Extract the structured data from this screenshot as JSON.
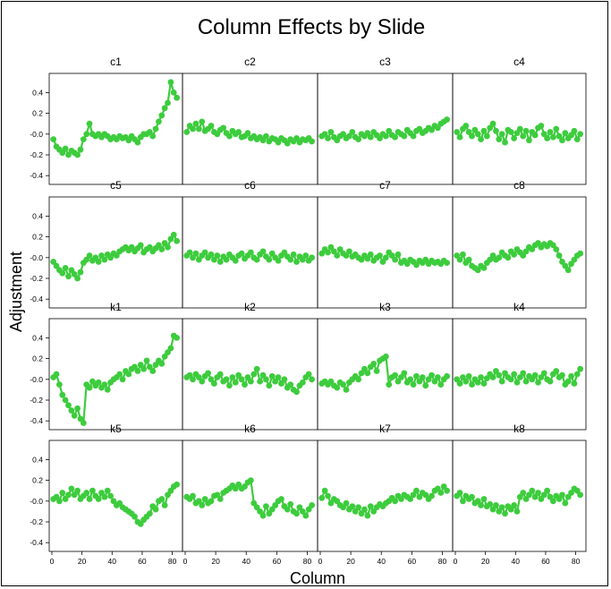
{
  "chart_data": {
    "type": "scatter",
    "title": "Column Effects by Slide",
    "xlabel": "Column",
    "ylabel": "Adjustment",
    "xlim": [
      0,
      85
    ],
    "ylim": [
      -0.45,
      0.55
    ],
    "xticks": [
      0,
      20,
      40,
      60,
      80
    ],
    "yticks": [
      -0.4,
      -0.2,
      0.0,
      0.2,
      0.4
    ],
    "ytick_labels": [
      "-0.4",
      "-0.2",
      "-0.0",
      "0.2",
      "0.4"
    ],
    "series_color": "#3dcc3d",
    "x": [
      1,
      3,
      5,
      7,
      9,
      11,
      13,
      15,
      17,
      19,
      21,
      23,
      25,
      27,
      29,
      31,
      33,
      35,
      37,
      39,
      41,
      43,
      45,
      47,
      49,
      51,
      53,
      55,
      57,
      59,
      61,
      63,
      65,
      67,
      69,
      71,
      73,
      75,
      77,
      79,
      81,
      83
    ],
    "panels": [
      {
        "name": "c1",
        "values": [
          -0.05,
          -0.12,
          -0.15,
          -0.18,
          -0.14,
          -0.2,
          -0.16,
          -0.18,
          -0.2,
          -0.15,
          -0.05,
          0.0,
          0.1,
          0.0,
          -0.02,
          0.0,
          -0.03,
          0.0,
          -0.02,
          -0.05,
          -0.03,
          -0.05,
          -0.02,
          -0.04,
          -0.03,
          -0.06,
          -0.02,
          -0.05,
          -0.08,
          -0.03,
          0.0,
          0.0,
          0.02,
          -0.02,
          0.05,
          0.12,
          0.18,
          0.25,
          0.3,
          0.5,
          0.4,
          0.35
        ]
      },
      {
        "name": "c2",
        "values": [
          0.02,
          0.08,
          0.05,
          0.1,
          0.05,
          0.12,
          0.03,
          0.05,
          0.08,
          0.02,
          0.0,
          0.04,
          0.06,
          0.01,
          -0.02,
          0.03,
          0.0,
          0.02,
          -0.03,
          -0.02,
          0.01,
          -0.04,
          -0.02,
          -0.05,
          -0.03,
          -0.06,
          -0.02,
          -0.07,
          -0.04,
          -0.05,
          -0.08,
          -0.04,
          -0.06,
          -0.09,
          -0.05,
          -0.07,
          -0.04,
          -0.08,
          -0.05,
          -0.06,
          -0.04,
          -0.07
        ]
      },
      {
        "name": "c3",
        "values": [
          -0.02,
          0.0,
          -0.04,
          0.02,
          -0.03,
          -0.06,
          -0.02,
          0.0,
          -0.04,
          -0.02,
          0.02,
          -0.03,
          -0.05,
          0.0,
          -0.02,
          0.01,
          -0.03,
          0.02,
          -0.01,
          -0.04,
          0.0,
          -0.02,
          0.03,
          -0.01,
          -0.03,
          0.02,
          0.0,
          -0.02,
          0.04,
          0.01,
          -0.02,
          0.03,
          0.05,
          0.01,
          0.03,
          0.06,
          0.04,
          0.08,
          0.06,
          0.1,
          0.12,
          0.14
        ]
      },
      {
        "name": "c4",
        "values": [
          0.02,
          -0.03,
          0.05,
          0.08,
          0.02,
          -0.02,
          0.04,
          0.0,
          -0.05,
          0.03,
          -0.02,
          0.06,
          0.1,
          0.03,
          -0.05,
          0.0,
          -0.08,
          0.04,
          0.02,
          -0.04,
          0.01,
          0.05,
          -0.02,
          0.03,
          -0.06,
          0.02,
          -0.01,
          0.06,
          0.08,
          0.0,
          -0.04,
          0.02,
          -0.03,
          0.05,
          -0.02,
          -0.06,
          0.01,
          -0.04,
          -0.01,
          0.03,
          -0.05,
          0.0
        ]
      },
      {
        "name": "c5",
        "values": [
          -0.04,
          -0.08,
          -0.12,
          -0.15,
          -0.1,
          -0.18,
          -0.12,
          -0.16,
          -0.2,
          -0.14,
          -0.05,
          -0.02,
          0.02,
          -0.03,
          0.0,
          -0.04,
          0.02,
          -0.02,
          0.03,
          0.0,
          0.04,
          0.02,
          0.06,
          0.08,
          0.1,
          0.07,
          0.1,
          0.06,
          0.09,
          0.12,
          0.05,
          0.08,
          0.1,
          0.06,
          0.09,
          0.12,
          0.08,
          0.14,
          0.1,
          0.18,
          0.22,
          0.16
        ]
      },
      {
        "name": "c6",
        "values": [
          0.02,
          0.05,
          0.0,
          0.04,
          -0.02,
          0.02,
          0.05,
          0.0,
          0.03,
          -0.02,
          0.02,
          -0.04,
          0.01,
          -0.02,
          0.03,
          0.0,
          -0.03,
          0.02,
          0.04,
          -0.01,
          0.02,
          0.05,
          0.0,
          -0.02,
          0.03,
          0.06,
          0.01,
          -0.02,
          0.04,
          0.0,
          -0.03,
          0.02,
          0.05,
          0.01,
          -0.02,
          0.03,
          -0.04,
          0.01,
          -0.02,
          0.02,
          -0.03,
          0.0
        ]
      },
      {
        "name": "c7",
        "values": [
          0.04,
          0.08,
          0.05,
          0.1,
          0.06,
          0.02,
          0.08,
          0.04,
          0.02,
          0.06,
          0.01,
          0.03,
          0.0,
          -0.02,
          0.02,
          -0.01,
          0.03,
          -0.03,
          0.0,
          0.02,
          -0.04,
          0.0,
          0.05,
          0.02,
          -0.02,
          0.03,
          -0.05,
          -0.03,
          -0.06,
          -0.02,
          -0.04,
          -0.07,
          -0.03,
          -0.05,
          -0.02,
          -0.06,
          -0.03,
          -0.05,
          -0.04,
          -0.06,
          -0.03,
          -0.05
        ]
      },
      {
        "name": "c8",
        "values": [
          0.02,
          -0.02,
          0.03,
          -0.05,
          -0.02,
          -0.08,
          -0.1,
          -0.12,
          -0.08,
          -0.1,
          -0.05,
          -0.02,
          0.02,
          -0.02,
          0.0,
          0.05,
          0.02,
          0.0,
          0.06,
          0.03,
          0.08,
          0.05,
          0.02,
          0.06,
          0.1,
          0.08,
          0.12,
          0.14,
          0.1,
          0.13,
          0.11,
          0.14,
          0.12,
          0.08,
          0.02,
          -0.04,
          -0.08,
          -0.12,
          -0.06,
          -0.02,
          0.02,
          0.04
        ]
      },
      {
        "name": "k1",
        "values": [
          0.02,
          0.05,
          -0.05,
          -0.15,
          -0.2,
          -0.25,
          -0.3,
          -0.35,
          -0.28,
          -0.38,
          -0.42,
          -0.05,
          -0.08,
          -0.02,
          -0.06,
          -0.03,
          -0.08,
          -0.05,
          -0.1,
          -0.03,
          0.0,
          0.02,
          0.05,
          0.0,
          0.08,
          0.05,
          0.1,
          0.12,
          0.08,
          0.14,
          0.1,
          0.18,
          0.12,
          0.08,
          0.14,
          0.18,
          0.15,
          0.22,
          0.26,
          0.3,
          0.42,
          0.4
        ]
      },
      {
        "name": "k2",
        "values": [
          0.02,
          0.04,
          0.0,
          0.05,
          0.02,
          -0.02,
          0.03,
          0.06,
          0.0,
          -0.04,
          0.02,
          0.05,
          -0.02,
          0.0,
          -0.06,
          0.02,
          -0.03,
          0.04,
          0.0,
          -0.05,
          0.02,
          -0.02,
          0.05,
          0.1,
          -0.02,
          0.04,
          0.0,
          -0.06,
          0.03,
          -0.02,
          0.02,
          -0.04,
          0.0,
          -0.08,
          -0.05,
          -0.1,
          -0.12,
          -0.06,
          -0.03,
          0.02,
          0.05,
          0.0
        ]
      },
      {
        "name": "k3",
        "values": [
          -0.04,
          -0.02,
          -0.05,
          -0.02,
          -0.06,
          -0.08,
          -0.03,
          -0.05,
          -0.1,
          -0.03,
          0.0,
          0.03,
          0.0,
          0.06,
          0.1,
          0.06,
          0.12,
          0.15,
          0.08,
          0.18,
          0.2,
          0.22,
          -0.05,
          0.02,
          0.04,
          -0.02,
          0.02,
          0.06,
          -0.03,
          0.0,
          -0.05,
          0.03,
          -0.02,
          0.02,
          -0.06,
          0.0,
          0.04,
          -0.02,
          0.02,
          -0.05,
          0.0,
          0.03
        ]
      },
      {
        "name": "k4",
        "values": [
          0.0,
          -0.04,
          0.02,
          -0.02,
          0.03,
          -0.05,
          0.0,
          -0.03,
          0.02,
          -0.04,
          0.01,
          0.05,
          0.02,
          0.08,
          0.04,
          -0.02,
          0.06,
          0.02,
          0.0,
          0.05,
          -0.03,
          0.02,
          0.06,
          -0.02,
          0.03,
          0.0,
          0.04,
          -0.03,
          0.02,
          0.06,
          0.0,
          -0.02,
          0.05,
          0.08,
          0.02,
          0.04,
          -0.05,
          -0.02,
          0.03,
          -0.04,
          0.05,
          0.1
        ]
      },
      {
        "name": "k5",
        "values": [
          0.02,
          0.04,
          0.0,
          0.08,
          0.02,
          0.06,
          0.12,
          0.06,
          0.1,
          0.02,
          0.05,
          0.08,
          0.02,
          0.1,
          0.05,
          0.02,
          0.08,
          0.04,
          0.1,
          0.05,
          0.0,
          -0.04,
          -0.02,
          -0.06,
          -0.08,
          -0.1,
          -0.12,
          -0.15,
          -0.2,
          -0.22,
          -0.18,
          -0.15,
          -0.12,
          -0.05,
          -0.08,
          0.0,
          0.02,
          -0.04,
          0.06,
          0.1,
          0.14,
          0.16
        ]
      },
      {
        "name": "k6",
        "values": [
          0.04,
          0.02,
          0.05,
          -0.02,
          0.0,
          -0.04,
          0.02,
          -0.02,
          0.0,
          0.05,
          0.06,
          0.02,
          0.08,
          0.1,
          0.12,
          0.15,
          0.12,
          0.16,
          0.12,
          0.14,
          0.18,
          0.2,
          -0.02,
          -0.06,
          -0.1,
          -0.14,
          -0.05,
          -0.12,
          -0.08,
          -0.04,
          0.0,
          0.02,
          -0.05,
          -0.08,
          -0.03,
          -0.1,
          -0.12,
          -0.06,
          -0.1,
          -0.14,
          -0.08,
          -0.04
        ]
      },
      {
        "name": "k7",
        "values": [
          0.03,
          0.1,
          0.05,
          -0.02,
          0.02,
          0.0,
          -0.04,
          -0.06,
          -0.02,
          -0.08,
          -0.05,
          -0.1,
          -0.06,
          -0.12,
          -0.08,
          -0.14,
          -0.05,
          -0.1,
          -0.06,
          -0.03,
          -0.05,
          -0.02,
          0.0,
          0.03,
          0.0,
          0.05,
          0.02,
          0.06,
          0.04,
          0.02,
          0.06,
          0.1,
          0.04,
          0.08,
          0.06,
          0.02,
          0.05,
          0.1,
          0.12,
          0.08,
          0.14,
          0.1
        ]
      },
      {
        "name": "k8",
        "values": [
          0.05,
          0.08,
          0.0,
          0.05,
          0.02,
          0.04,
          -0.02,
          0.0,
          -0.04,
          0.02,
          -0.05,
          -0.03,
          -0.08,
          -0.04,
          -0.1,
          -0.06,
          -0.12,
          -0.05,
          -0.08,
          -0.04,
          -0.1,
          0.04,
          0.08,
          0.02,
          0.06,
          0.1,
          0.04,
          0.08,
          0.02,
          0.06,
          0.1,
          0.04,
          0.0,
          0.05,
          0.02,
          0.06,
          -0.02,
          0.04,
          0.08,
          0.12,
          0.1,
          0.06
        ]
      }
    ]
  }
}
